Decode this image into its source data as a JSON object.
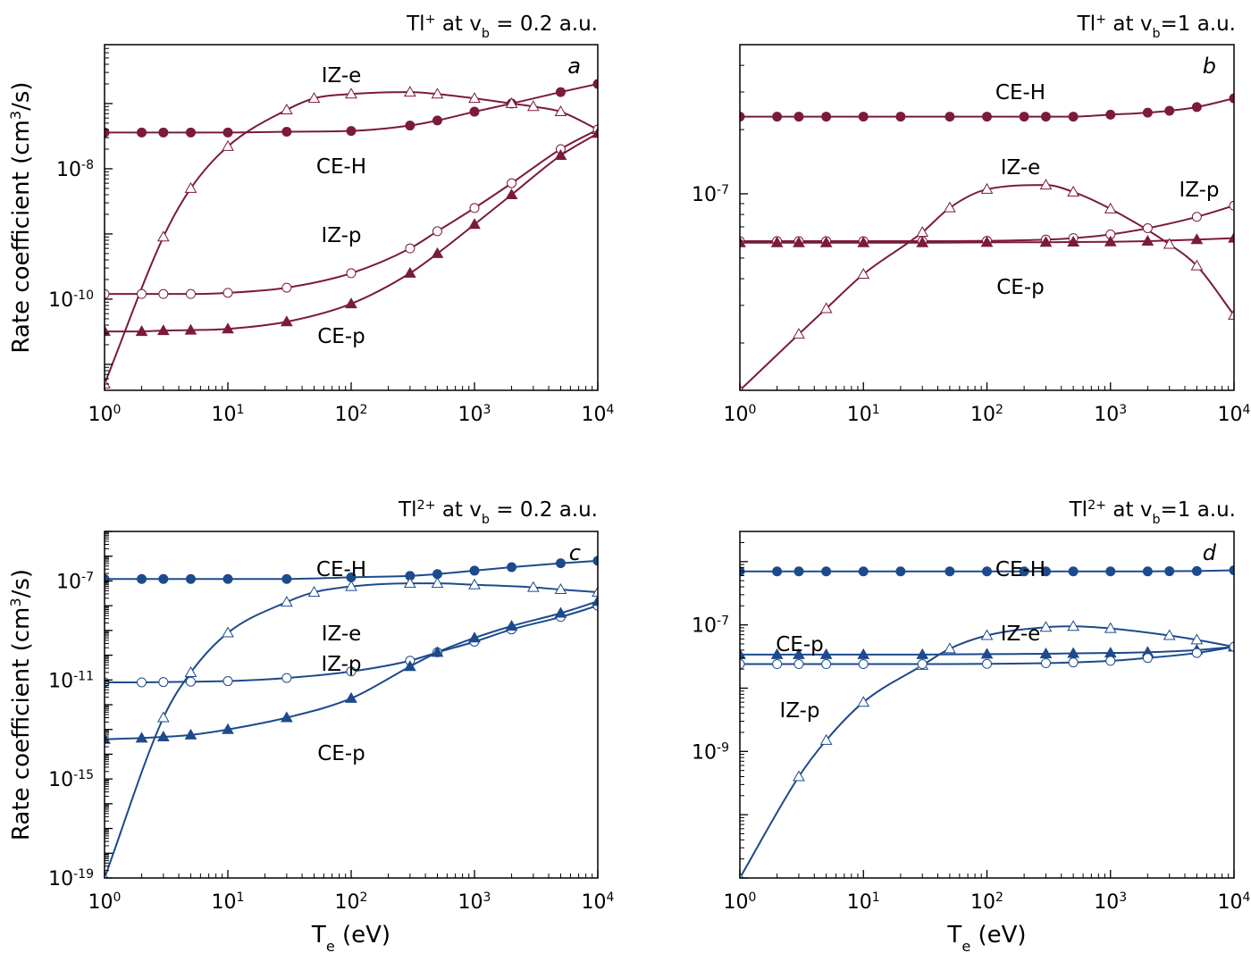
{
  "colors": {
    "panel_ab": "#7b1a3c",
    "panel_cd": "#1c4a8c",
    "axis": "#000000",
    "marker_fill_open": "#ffffff"
  },
  "chart_data": [
    {
      "type": "line",
      "panel": "a",
      "title": "Tl⁺ at v_b = 0.2 a.u.",
      "ylabel": "Rate coefficient (cm³/s)",
      "xlabel": "",
      "x_scale": "log",
      "y_scale": "log",
      "xlim": [
        1,
        10000
      ],
      "ylim": [
        4e-12,
        8e-07
      ],
      "x_ticks": [
        1,
        10,
        100,
        1000,
        10000
      ],
      "y_ticks": [
        1e-10,
        1e-08
      ],
      "series": [
        {
          "name": "CE-H",
          "marker": "filled-circle",
          "x": [
            1,
            2,
            3,
            5,
            10,
            30,
            100,
            300,
            500,
            1000,
            2000,
            5000,
            10000
          ],
          "y": [
            3.6e-08,
            3.6e-08,
            3.6e-08,
            3.6e-08,
            3.6e-08,
            3.7e-08,
            3.8e-08,
            4.6e-08,
            5.5e-08,
            7.5e-08,
            1e-07,
            1.5e-07,
            2e-07
          ]
        },
        {
          "name": "IZ-e",
          "marker": "open-triangle",
          "x": [
            1,
            3,
            5,
            10,
            30,
            50,
            100,
            300,
            500,
            1000,
            2000,
            3000,
            5000,
            10000
          ],
          "y": [
            5e-12,
            9e-10,
            5e-09,
            2.2e-08,
            8e-08,
            1.2e-07,
            1.4e-07,
            1.5e-07,
            1.4e-07,
            1.2e-07,
            1e-07,
            9e-08,
            7.5e-08,
            4e-08
          ]
        },
        {
          "name": "IZ-p",
          "marker": "open-circle",
          "x": [
            1,
            2,
            3,
            5,
            10,
            30,
            100,
            300,
            500,
            1000,
            2000,
            5000,
            10000
          ],
          "y": [
            1.2e-10,
            1.2e-10,
            1.2e-10,
            1.2e-10,
            1.25e-10,
            1.5e-10,
            2.5e-10,
            6e-10,
            1.1e-09,
            2.5e-09,
            6e-09,
            2e-08,
            4e-08
          ]
        },
        {
          "name": "CE-p",
          "marker": "filled-triangle",
          "x": [
            1,
            2,
            3,
            5,
            10,
            30,
            100,
            300,
            500,
            1000,
            2000,
            5000,
            10000
          ],
          "y": [
            3.2e-11,
            3.2e-11,
            3.3e-11,
            3.35e-11,
            3.5e-11,
            4.5e-11,
            8.5e-11,
            2.5e-10,
            5e-10,
            1.4e-09,
            4e-09,
            1.6e-08,
            3.5e-08
          ]
        }
      ],
      "labels": [
        "IZ-e",
        "CE-H",
        "IZ-p",
        "CE-p"
      ]
    },
    {
      "type": "line",
      "panel": "b",
      "title": "Tl⁺ at v_b=1 a.u.",
      "ylabel": "",
      "xlabel": "",
      "x_scale": "log",
      "y_scale": "log",
      "xlim": [
        1,
        10000
      ],
      "ylim": [
        1.2e-08,
        5e-07
      ],
      "x_ticks": [
        1,
        10,
        100,
        1000,
        10000
      ],
      "y_ticks": [
        1e-07
      ],
      "series": [
        {
          "name": "CE-H",
          "marker": "filled-circle",
          "x": [
            1,
            2,
            3,
            5,
            10,
            20,
            50,
            100,
            200,
            300,
            500,
            1000,
            2000,
            3000,
            5000,
            10000
          ],
          "y": [
            2.3e-07,
            2.3e-07,
            2.3e-07,
            2.3e-07,
            2.3e-07,
            2.3e-07,
            2.3e-07,
            2.3e-07,
            2.3e-07,
            2.3e-07,
            2.3e-07,
            2.35e-07,
            2.4e-07,
            2.45e-07,
            2.55e-07,
            2.8e-07
          ]
        },
        {
          "name": "IZ-e",
          "marker": "open-triangle",
          "x": [
            1,
            3,
            5,
            10,
            30,
            50,
            100,
            300,
            500,
            1000,
            3000,
            5000,
            10000
          ],
          "y": [
            1.2e-08,
            2.2e-08,
            2.9e-08,
            4.2e-08,
            6.6e-08,
            8.6e-08,
            1.05e-07,
            1.1e-07,
            1.02e-07,
            8.5e-08,
            5.8e-08,
            4.6e-08,
            2.7e-08
          ]
        },
        {
          "name": "IZ-p",
          "marker": "open-circle",
          "x": [
            1,
            2,
            3,
            5,
            10,
            30,
            100,
            300,
            500,
            1000,
            2000,
            5000,
            10000
          ],
          "y": [
            6e-08,
            6e-08,
            6e-08,
            6e-08,
            6e-08,
            6e-08,
            6.02e-08,
            6.1e-08,
            6.2e-08,
            6.45e-08,
            6.9e-08,
            7.8e-08,
            8.8e-08
          ]
        },
        {
          "name": "CE-p",
          "marker": "filled-triangle",
          "x": [
            1,
            2,
            3,
            5,
            10,
            30,
            100,
            300,
            500,
            1000,
            2000,
            5000,
            10000
          ],
          "y": [
            5.9e-08,
            5.9e-08,
            5.9e-08,
            5.9e-08,
            5.9e-08,
            5.9e-08,
            5.92e-08,
            5.93e-08,
            5.94e-08,
            5.96e-08,
            6e-08,
            6.1e-08,
            6.2e-08
          ]
        }
      ],
      "labels": [
        "CE-H",
        "IZ-e",
        "IZ-p",
        "CE-p"
      ]
    },
    {
      "type": "line",
      "panel": "c",
      "title": "Tl²⁺ at v_b = 0.2 a.u.",
      "ylabel": "Rate coefficient (cm³/s)",
      "xlabel": "T_e (eV)",
      "x_scale": "log",
      "y_scale": "log",
      "xlim": [
        1,
        10000
      ],
      "ylim": [
        1e-19,
        1e-05
      ],
      "x_ticks": [
        1,
        10,
        100,
        1000,
        10000
      ],
      "y_ticks": [
        1e-19,
        1e-15,
        1e-11,
        1e-07
      ],
      "series": [
        {
          "name": "CE-H",
          "marker": "filled-circle",
          "x": [
            1,
            2,
            3,
            5,
            10,
            30,
            100,
            300,
            500,
            1000,
            2000,
            5000,
            10000
          ],
          "y": [
            1.2e-07,
            1.2e-07,
            1.2e-07,
            1.2e-07,
            1.2e-07,
            1.2e-07,
            1.4e-07,
            1.6e-07,
            1.9e-07,
            2.6e-07,
            3.6e-07,
            5.2e-07,
            6.5e-07
          ]
        },
        {
          "name": "IZ-e",
          "marker": "open-triangle",
          "x": [
            1,
            3,
            5,
            10,
            30,
            50,
            100,
            300,
            500,
            1000,
            3000,
            5000,
            10000
          ],
          "y": [
            1e-19,
            3e-13,
            2e-11,
            8e-10,
            1.4e-08,
            3.5e-08,
            6e-08,
            8e-08,
            8e-08,
            7e-08,
            5.5e-08,
            4.5e-08,
            3.5e-08
          ]
        },
        {
          "name": "IZ-p",
          "marker": "open-circle",
          "x": [
            1,
            2,
            3,
            5,
            10,
            30,
            100,
            300,
            500,
            1000,
            2000,
            5000,
            10000
          ],
          "y": [
            8e-12,
            8e-12,
            8.2e-12,
            8.5e-12,
            9e-12,
            1.2e-11,
            2.2e-11,
            6e-11,
            1.3e-10,
            3.5e-10,
            1.1e-09,
            3.5e-09,
            1e-08
          ]
        },
        {
          "name": "CE-p",
          "marker": "filled-triangle",
          "x": [
            1,
            2,
            3,
            5,
            10,
            30,
            100,
            300,
            500,
            1000,
            2000,
            5000,
            10000
          ],
          "y": [
            4e-14,
            4.5e-14,
            5e-14,
            6e-14,
            1e-13,
            3e-13,
            1.8e-12,
            3.5e-11,
            1.3e-10,
            5e-10,
            1.5e-09,
            5e-09,
            1.5e-08
          ]
        }
      ],
      "labels": [
        "CE-H",
        "IZ-e",
        "IZ-p",
        "CE-p"
      ]
    },
    {
      "type": "line",
      "panel": "d",
      "title": "Tl²⁺ at v_b=1 a.u.",
      "ylabel": "",
      "xlabel": "T_e (eV)",
      "x_scale": "log",
      "y_scale": "log",
      "xlim": [
        1,
        10000
      ],
      "ylim": [
        1e-11,
        3e-06
      ],
      "x_ticks": [
        1,
        10,
        100,
        1000,
        10000
      ],
      "y_ticks": [
        1e-09,
        1e-07
      ],
      "series": [
        {
          "name": "CE-H",
          "marker": "filled-circle",
          "x": [
            1,
            2,
            3,
            5,
            10,
            20,
            50,
            100,
            200,
            300,
            500,
            1000,
            2000,
            3000,
            5000,
            10000
          ],
          "y": [
            7e-07,
            7e-07,
            7e-07,
            7e-07,
            7e-07,
            7e-07,
            7e-07,
            7e-07,
            7e-07,
            7e-07,
            7e-07,
            7e-07,
            7e-07,
            7.05e-07,
            7.1e-07,
            7.3e-07
          ]
        },
        {
          "name": "IZ-e",
          "marker": "open-triangle",
          "x": [
            1,
            3,
            5,
            10,
            30,
            50,
            100,
            300,
            500,
            1000,
            3000,
            5000,
            10000
          ],
          "y": [
            1e-11,
            4e-10,
            1.5e-09,
            6e-09,
            2.3e-08,
            4.2e-08,
            6.8e-08,
            9.2e-08,
            9.5e-08,
            8.8e-08,
            6.8e-08,
            5.8e-08,
            4.5e-08
          ]
        },
        {
          "name": "CE-p",
          "marker": "filled-triangle",
          "x": [
            1,
            2,
            3,
            5,
            10,
            30,
            100,
            300,
            500,
            1000,
            2000,
            5000,
            10000
          ],
          "y": [
            3.4e-08,
            3.4e-08,
            3.4e-08,
            3.4e-08,
            3.4e-08,
            3.4e-08,
            3.45e-08,
            3.5e-08,
            3.55e-08,
            3.6e-08,
            3.7e-08,
            4e-08,
            4.5e-08
          ]
        },
        {
          "name": "IZ-p",
          "marker": "open-circle",
          "x": [
            1,
            2,
            3,
            5,
            10,
            30,
            100,
            300,
            500,
            1000,
            2000,
            5000,
            10000
          ],
          "y": [
            2.4e-08,
            2.4e-08,
            2.4e-08,
            2.4e-08,
            2.4e-08,
            2.4e-08,
            2.42e-08,
            2.48e-08,
            2.55e-08,
            2.7e-08,
            3e-08,
            3.6e-08,
            4.5e-08
          ]
        }
      ],
      "labels": [
        "CE-H",
        "IZ-e",
        "CE-p",
        "IZ-p"
      ]
    }
  ]
}
